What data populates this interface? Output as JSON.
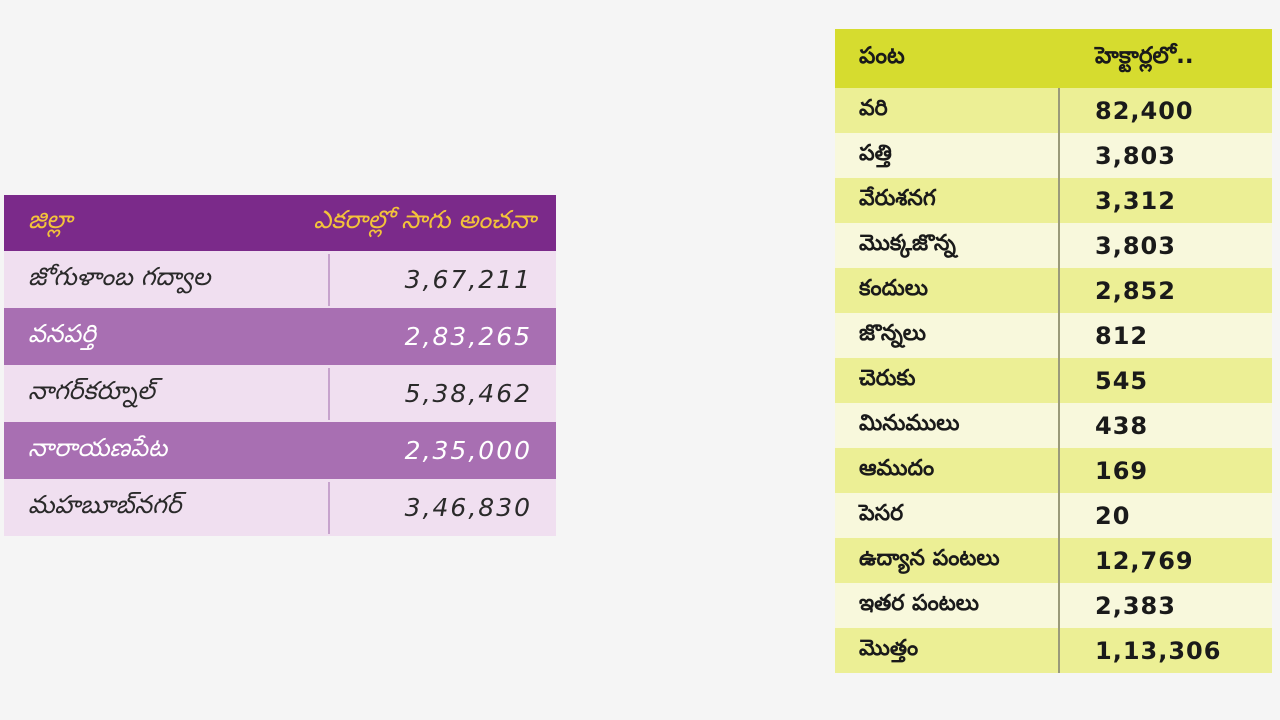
{
  "district_table": {
    "header": {
      "district": "జిల్లా",
      "estimate": "ఎకరాల్లో సాగు అంచనా"
    },
    "rows": [
      {
        "name": "జోగుళాంబ గద్వాల",
        "value": "3,67,211"
      },
      {
        "name": "వనపర్తి",
        "value": "2,83,265"
      },
      {
        "name": "నాగర్‌కర్నూల్",
        "value": "5,38,462"
      },
      {
        "name": "నారాయణపేట",
        "value": "2,35,000"
      },
      {
        "name": "మహబూబ్‌నగర్",
        "value": "3,46,830"
      }
    ]
  },
  "crop_table": {
    "header": {
      "crop": "పంట",
      "hectares": "హెక్టార్లలో.."
    },
    "rows": [
      {
        "name": "వరి",
        "value": "82,400"
      },
      {
        "name": "పత్తి",
        "value": "3,803"
      },
      {
        "name": "వేరుశనగ",
        "value": "3,312"
      },
      {
        "name": "మొక్కజొన్న",
        "value": "3,803"
      },
      {
        "name": "కందులు",
        "value": "2,852"
      },
      {
        "name": "జొన్నలు",
        "value": "812"
      },
      {
        "name": "చెరుకు",
        "value": "545"
      },
      {
        "name": "మినుములు",
        "value": "438"
      },
      {
        "name": "ఆముదం",
        "value": "169"
      },
      {
        "name": "పెసర",
        "value": "20"
      },
      {
        "name": "ఉద్యాన పంటలు",
        "value": "12,769"
      },
      {
        "name": "ఇతర పంటలు",
        "value": "2,383"
      },
      {
        "name": "మొత్తం",
        "value": "1,13,306"
      }
    ]
  },
  "colors": {
    "left_header_bg": "#7b2a8a",
    "left_header_text": "#f3c33a",
    "left_row_light": "#f0dff0",
    "left_row_dark": "#a86fb2",
    "right_header_bg": "#d6dc2f",
    "right_row_green": "#ecef95",
    "right_row_cream": "#f8f8dc"
  }
}
